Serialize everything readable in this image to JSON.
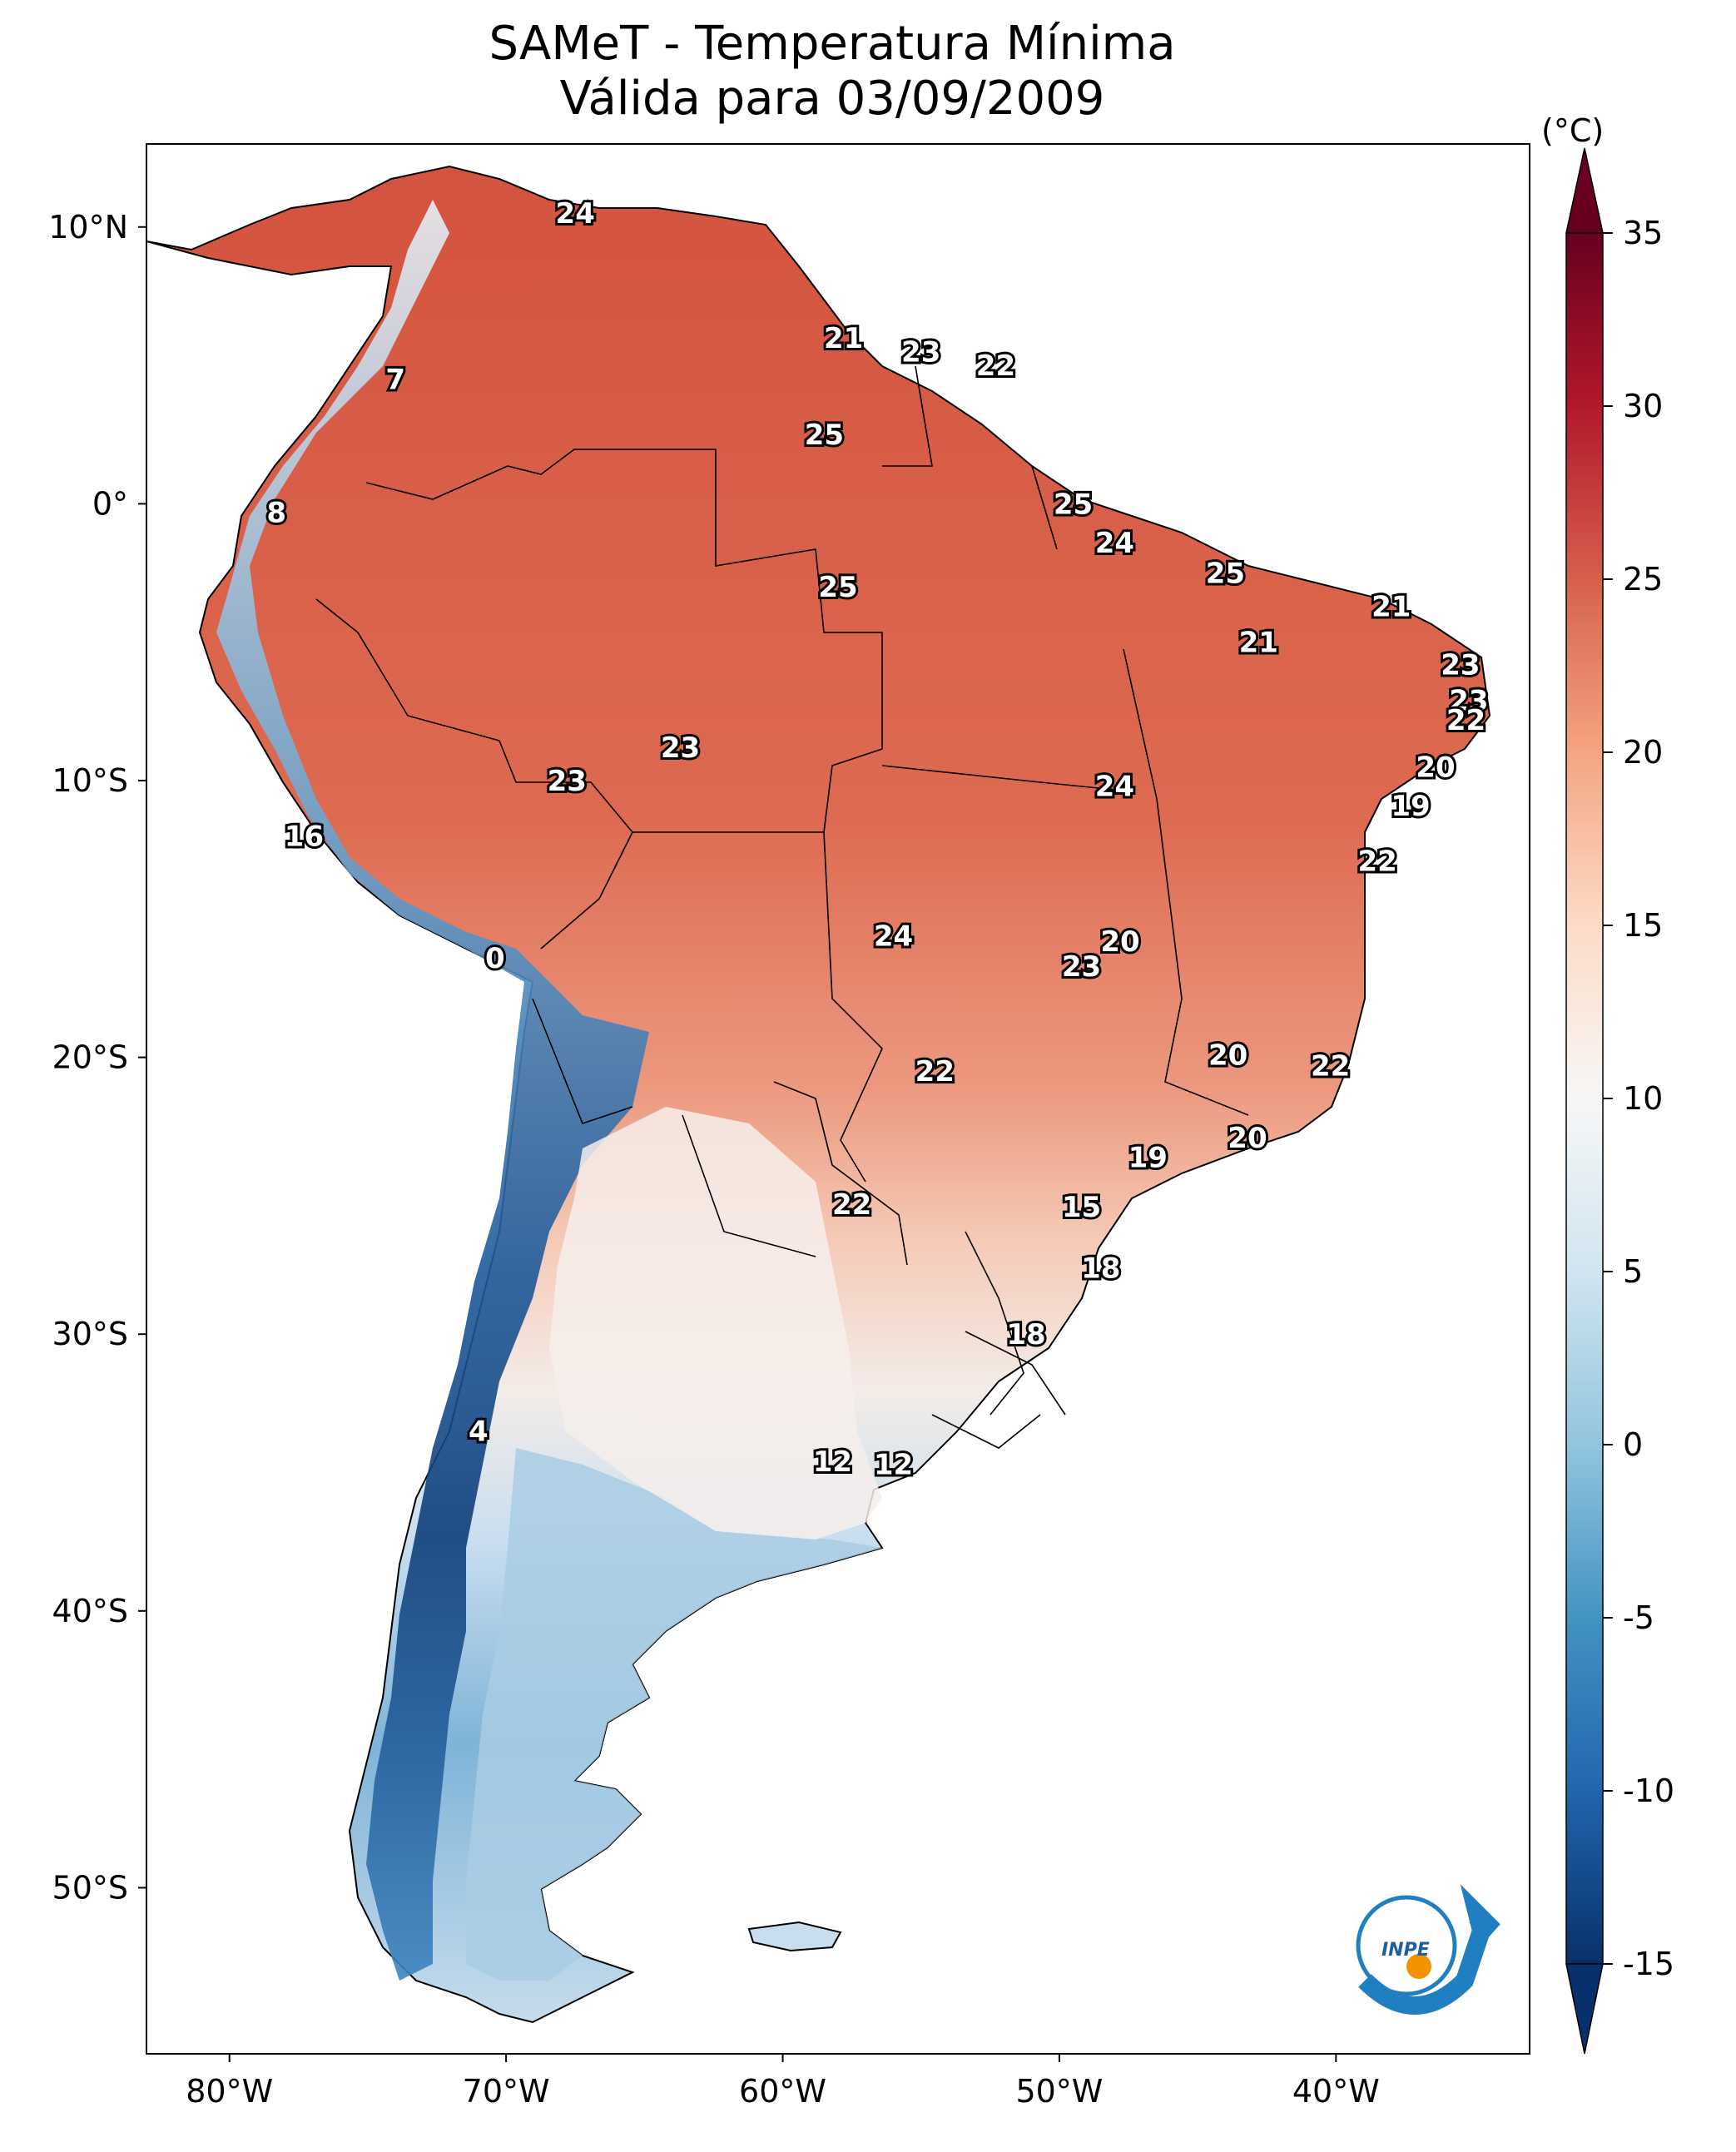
{
  "title": "SAMeT - Temperatura Mínima",
  "subtitle": "Válida para 03/09/2009",
  "colorbar": {
    "unit": "(°C)",
    "min": -15,
    "max": 35,
    "ticks": [
      "35",
      "30",
      "25",
      "20",
      "15",
      "10",
      "5",
      "0",
      "-5",
      "-10",
      "-15"
    ],
    "colors": [
      "#08306b",
      "#2166ac",
      "#4393c3",
      "#92c5de",
      "#d1e5f0",
      "#f7f7f7",
      "#fddbc7",
      "#f4a582",
      "#d6604d",
      "#b2182b",
      "#67001f"
    ]
  },
  "axes": {
    "lon_labels": [
      "80°W",
      "70°W",
      "60°W",
      "50°W",
      "40°W"
    ],
    "lat_labels": [
      "10°N",
      "0°",
      "10°S",
      "20°S",
      "30°S",
      "40°S",
      "50°S"
    ],
    "lon_range": [
      -83,
      -33
    ],
    "lat_range": [
      -56,
      13
    ]
  },
  "chart_data": {
    "type": "heatmap",
    "title": "SAMeT - Temperatura Mínima",
    "subtitle": "Válida para 03/09/2009",
    "unit": "(°C)",
    "colorbar_range": [
      -15,
      35
    ],
    "station_values": [
      {
        "lon": -67.5,
        "lat": 10.5,
        "value": "24"
      },
      {
        "lon": -57.8,
        "lat": 6.0,
        "value": "21"
      },
      {
        "lon": -55.0,
        "lat": 5.5,
        "value": "23"
      },
      {
        "lon": -52.3,
        "lat": 5.0,
        "value": "22"
      },
      {
        "lon": -74.0,
        "lat": 4.5,
        "value": "7"
      },
      {
        "lon": -58.5,
        "lat": 2.5,
        "value": "25"
      },
      {
        "lon": -78.3,
        "lat": -0.3,
        "value": "8"
      },
      {
        "lon": -49.5,
        "lat": 0.0,
        "value": "25"
      },
      {
        "lon": -48.0,
        "lat": -1.4,
        "value": "24"
      },
      {
        "lon": -58.0,
        "lat": -3.0,
        "value": "25"
      },
      {
        "lon": -44.0,
        "lat": -2.5,
        "value": "25"
      },
      {
        "lon": -38.0,
        "lat": -3.7,
        "value": "21"
      },
      {
        "lon": -42.8,
        "lat": -5.0,
        "value": "21"
      },
      {
        "lon": -35.5,
        "lat": -5.8,
        "value": "23"
      },
      {
        "lon": -35.2,
        "lat": -7.1,
        "value": "23"
      },
      {
        "lon": -35.3,
        "lat": -7.8,
        "value": "22"
      },
      {
        "lon": -63.7,
        "lat": -8.8,
        "value": "23"
      },
      {
        "lon": -67.8,
        "lat": -10.0,
        "value": "23"
      },
      {
        "lon": -48.0,
        "lat": -10.2,
        "value": "24"
      },
      {
        "lon": -36.4,
        "lat": -9.5,
        "value": "20"
      },
      {
        "lon": -37.3,
        "lat": -10.9,
        "value": "19"
      },
      {
        "lon": -38.5,
        "lat": -12.9,
        "value": "22"
      },
      {
        "lon": -77.3,
        "lat": -12.0,
        "value": "16"
      },
      {
        "lon": -56.0,
        "lat": -15.6,
        "value": "24"
      },
      {
        "lon": -47.8,
        "lat": -15.8,
        "value": "20"
      },
      {
        "lon": -49.2,
        "lat": -16.7,
        "value": "23"
      },
      {
        "lon": -70.4,
        "lat": -16.4,
        "value": "0"
      },
      {
        "lon": -54.5,
        "lat": -20.5,
        "value": "22"
      },
      {
        "lon": -43.9,
        "lat": -19.9,
        "value": "20"
      },
      {
        "lon": -40.2,
        "lat": -20.3,
        "value": "22"
      },
      {
        "lon": -46.8,
        "lat": -23.6,
        "value": "19"
      },
      {
        "lon": -43.2,
        "lat": -22.9,
        "value": "20"
      },
      {
        "lon": -57.5,
        "lat": -25.3,
        "value": "22"
      },
      {
        "lon": -49.2,
        "lat": -25.4,
        "value": "15"
      },
      {
        "lon": -48.5,
        "lat": -27.6,
        "value": "18"
      },
      {
        "lon": -51.2,
        "lat": -30.0,
        "value": "18"
      },
      {
        "lon": -71.0,
        "lat": -33.5,
        "value": "4"
      },
      {
        "lon": -58.2,
        "lat": -34.6,
        "value": "12"
      },
      {
        "lon": -56.0,
        "lat": -34.7,
        "value": "12"
      }
    ]
  },
  "logo": {
    "text": "INPE"
  }
}
